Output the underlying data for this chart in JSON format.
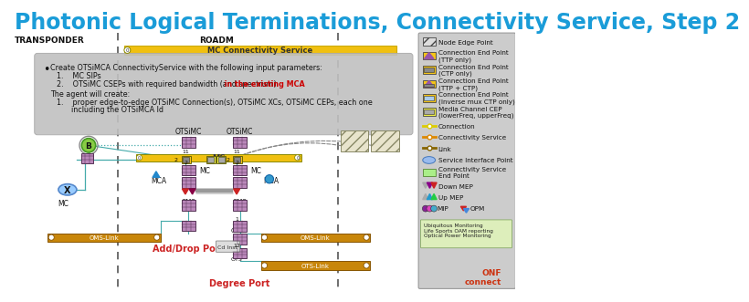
{
  "title": "Photonic Logical Terminations, Connectivity Service, Step 2",
  "title_color": "#1a9cd8",
  "title_fontsize": 17,
  "bg_color": "#ffffff",
  "transponder_label": "TRANSPONDER",
  "roadm_label": "ROADM",
  "mc_service_label": "MC Connectivity Service",
  "red_text": " in the existing MCA",
  "add_drop_label": "Add/Drop Port",
  "degree_label": "Degree Port",
  "oms_link_label": "OMS-Link",
  "ots_link_label": "OTS-Link",
  "otsimc_label": "OTSiMC",
  "mc_label": "MC",
  "oms_label": "OMS",
  "ots_label": "OTS",
  "mca_label": "MCA",
  "legend_items": [
    "Node Edge Point",
    "Connection End Point\n(TTP only)",
    "Connection End Point\n(CTP only)",
    "Connection End Point\n(TTP + CTP)",
    "Connection End Point\n(Inverse mux CTP only)",
    "Media Channel CEP\n(lowerFreq, upperFreq)",
    "Connection",
    "Connectivity Service",
    "Link",
    "Service Interface Point",
    "Connectivity Service\nEnd Point",
    "Down MEP",
    "Up MEP",
    "MIP",
    "OPM"
  ],
  "node_color": "#bb88bb",
  "cep_yellow": "#f5c518",
  "cep_gray": "#888888",
  "mc_bar_color": "#f5c518",
  "oms_color": "#c8860a",
  "legend_bg": "#cccccc",
  "tb_bg": "#c0c0c0",
  "div_color": "#555555",
  "teal": "#44aaaa",
  "gray_line": "#999999"
}
